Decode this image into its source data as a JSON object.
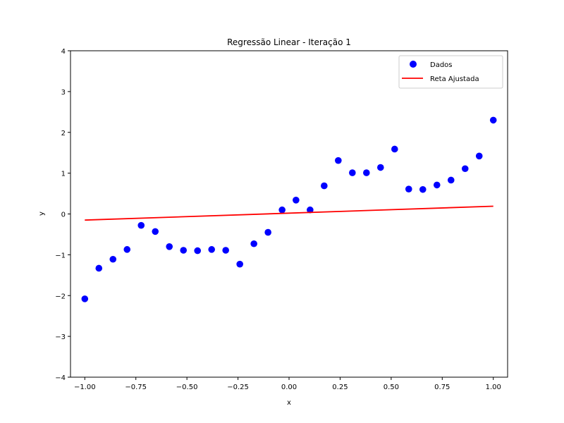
{
  "chart_data": {
    "type": "scatter",
    "title": "Regressão Linear - Iteração 1",
    "xlabel": "x",
    "ylabel": "y",
    "xlim": [
      -1.07,
      1.07
    ],
    "ylim": [
      -4,
      4
    ],
    "xticks": [
      -1.0,
      -0.75,
      -0.5,
      -0.25,
      0.0,
      0.25,
      0.5,
      0.75,
      1.0
    ],
    "xtick_labels": [
      "−1.00",
      "−0.75",
      "−0.50",
      "−0.25",
      "0.00",
      "0.25",
      "0.50",
      "0.75",
      "1.00"
    ],
    "yticks": [
      -4,
      -3,
      -2,
      -1,
      0,
      1,
      2,
      3,
      4
    ],
    "ytick_labels": [
      "−4",
      "−3",
      "−2",
      "−1",
      "0",
      "1",
      "2",
      "3",
      "4"
    ],
    "grid": false,
    "legend_position": "top-right",
    "series": [
      {
        "name": "Dados",
        "kind": "scatter",
        "color": "#0000ff",
        "x": [
          -1.0,
          -0.931,
          -0.862,
          -0.793,
          -0.724,
          -0.655,
          -0.586,
          -0.517,
          -0.448,
          -0.379,
          -0.31,
          -0.241,
          -0.172,
          -0.103,
          -0.034,
          0.034,
          0.103,
          0.172,
          0.241,
          0.31,
          0.379,
          0.448,
          0.517,
          0.586,
          0.655,
          0.724,
          0.793,
          0.862,
          0.931,
          1.0
        ],
        "y": [
          -2.08,
          -1.33,
          -1.11,
          -0.87,
          -0.28,
          -0.43,
          -0.8,
          -0.89,
          -0.9,
          -0.87,
          -0.89,
          -1.23,
          -0.73,
          -0.45,
          0.1,
          0.34,
          0.1,
          0.69,
          1.31,
          1.01,
          1.01,
          1.14,
          1.59,
          0.61,
          0.6,
          0.71,
          0.83,
          1.11,
          1.42,
          2.3
        ]
      },
      {
        "name": "Reta Ajustada",
        "kind": "line",
        "color": "#ff0000",
        "x": [
          -1.0,
          1.0
        ],
        "y": [
          -0.15,
          0.19
        ]
      }
    ]
  }
}
